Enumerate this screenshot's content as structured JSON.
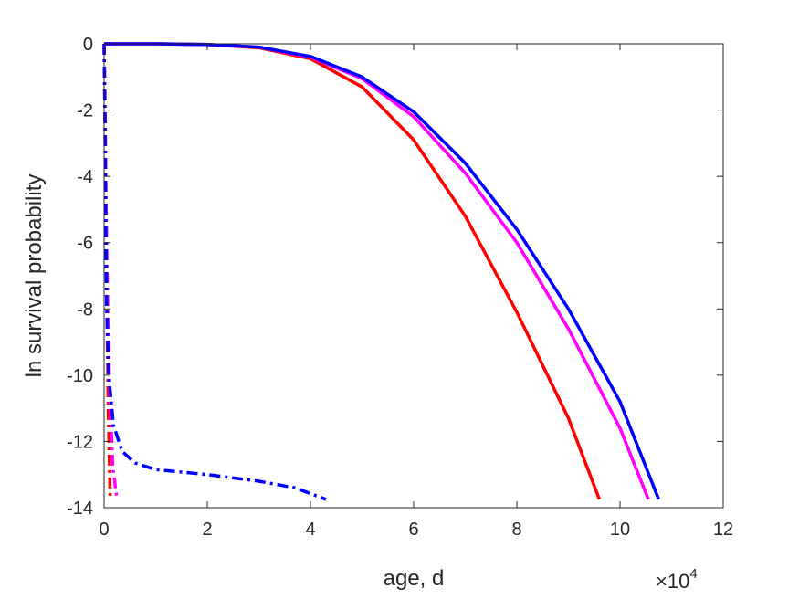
{
  "chart_data": {
    "type": "line",
    "xlabel": "age, d",
    "ylabel": "ln survival probability",
    "x_multiplier": {
      "base": "×10",
      "exponent": "4"
    },
    "xlim": [
      0,
      120000
    ],
    "ylim": [
      -14,
      0
    ],
    "xticks": [
      0,
      20000,
      40000,
      60000,
      80000,
      100000,
      120000
    ],
    "xtick_labels": [
      "0",
      "2",
      "4",
      "6",
      "8",
      "10",
      "12"
    ],
    "yticks": [
      0,
      -2,
      -4,
      -6,
      -8,
      -10,
      -12,
      -14
    ],
    "ytick_labels": [
      "0",
      "-2",
      "-4",
      "-6",
      "-8",
      "-10",
      "-12",
      "-14"
    ],
    "grid": false,
    "legend": "none",
    "series": [
      {
        "color": "#ff0000",
        "style": "solid",
        "points": [
          [
            0,
            0
          ],
          [
            10000,
            0
          ],
          [
            20000,
            -0.02
          ],
          [
            30000,
            -0.12
          ],
          [
            40000,
            -0.45
          ],
          [
            50000,
            -1.3
          ],
          [
            60000,
            -2.9
          ],
          [
            70000,
            -5.2
          ],
          [
            80000,
            -8.1
          ],
          [
            90000,
            -11.3
          ],
          [
            96000,
            -13.75
          ]
        ]
      },
      {
        "color": "#ff00ff",
        "style": "solid",
        "points": [
          [
            0,
            0
          ],
          [
            10000,
            0
          ],
          [
            20000,
            -0.02
          ],
          [
            30000,
            -0.1
          ],
          [
            40000,
            -0.4
          ],
          [
            50000,
            -1.05
          ],
          [
            60000,
            -2.2
          ],
          [
            70000,
            -3.9
          ],
          [
            80000,
            -6.0
          ],
          [
            90000,
            -8.6
          ],
          [
            100000,
            -11.6
          ],
          [
            105500,
            -13.75
          ]
        ]
      },
      {
        "color": "#0000ff",
        "style": "solid",
        "points": [
          [
            0,
            0
          ],
          [
            10000,
            0
          ],
          [
            20000,
            -0.02
          ],
          [
            30000,
            -0.1
          ],
          [
            40000,
            -0.38
          ],
          [
            50000,
            -1.0
          ],
          [
            60000,
            -2.05
          ],
          [
            70000,
            -3.6
          ],
          [
            80000,
            -5.6
          ],
          [
            90000,
            -8.0
          ],
          [
            100000,
            -10.8
          ],
          [
            107500,
            -13.75
          ]
        ]
      },
      {
        "color": "#ff0000",
        "style": "dash-dot",
        "points": [
          [
            0,
            0
          ],
          [
            150,
            -2
          ],
          [
            350,
            -5
          ],
          [
            550,
            -8
          ],
          [
            800,
            -11
          ],
          [
            1200,
            -13.75
          ]
        ]
      },
      {
        "color": "#ff00ff",
        "style": "dash-dot",
        "points": [
          [
            0,
            0
          ],
          [
            200,
            -2
          ],
          [
            400,
            -5
          ],
          [
            700,
            -8
          ],
          [
            1100,
            -10.5
          ],
          [
            1700,
            -12.8
          ],
          [
            2500,
            -13.75
          ]
        ]
      },
      {
        "color": "#0000ff",
        "style": "dash-dot",
        "points": [
          [
            0,
            0
          ],
          [
            150,
            -2
          ],
          [
            300,
            -5
          ],
          [
            500,
            -8
          ],
          [
            900,
            -10
          ],
          [
            1800,
            -11.5
          ],
          [
            3500,
            -12.3
          ],
          [
            6000,
            -12.65
          ],
          [
            10000,
            -12.85
          ],
          [
            20000,
            -13.0
          ],
          [
            30000,
            -13.2
          ],
          [
            37000,
            -13.4
          ],
          [
            43000,
            -13.75
          ]
        ]
      }
    ]
  }
}
